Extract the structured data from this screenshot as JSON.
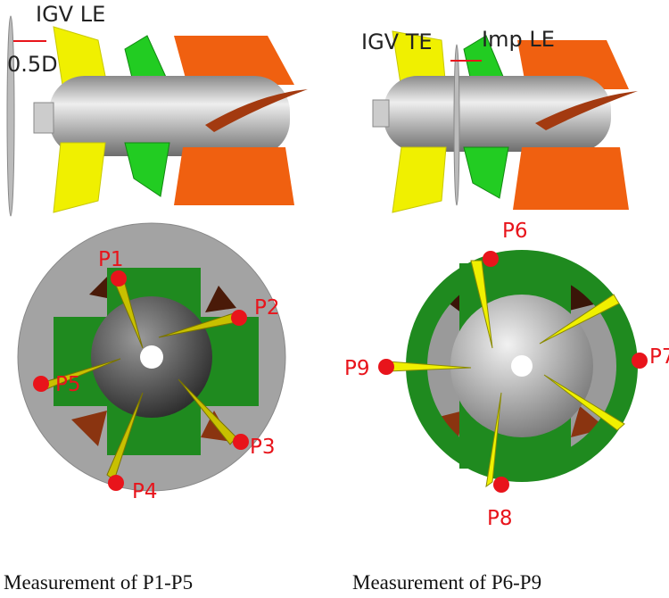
{
  "top_left": {
    "labels": [
      "IGV LE",
      "0.5D"
    ]
  },
  "top_right": {
    "labels": [
      "IGV TE",
      "Imp LE"
    ]
  },
  "bottom_left": {
    "points": [
      "P1",
      "P2",
      "P3",
      "P4",
      "P5"
    ],
    "caption": "Measurement of P1-P5"
  },
  "bottom_right": {
    "points": [
      "P6",
      "P7",
      "P8",
      "P9"
    ],
    "caption": "Measurement of P6-P9"
  }
}
